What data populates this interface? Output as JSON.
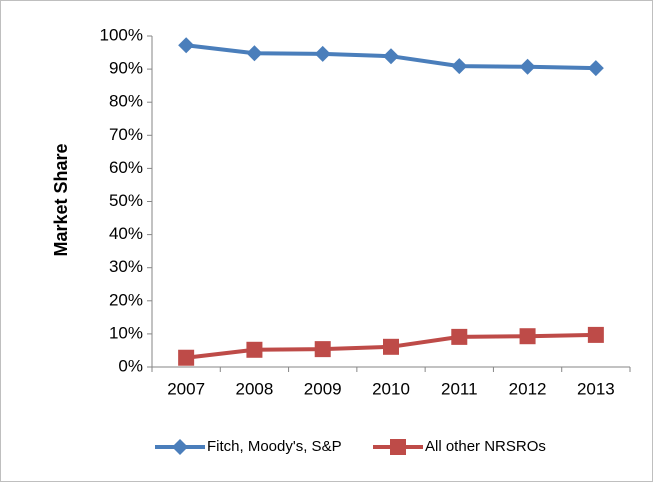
{
  "chart_data": {
    "type": "line",
    "y_axis_label": "Market Share",
    "categories": [
      "2007",
      "2008",
      "2009",
      "2010",
      "2011",
      "2012",
      "2013"
    ],
    "series": [
      {
        "name": "Fitch, Moody's, S&P",
        "color": "#4a7ebb",
        "marker": "diamond",
        "values": [
          97.2,
          94.8,
          94.6,
          93.9,
          90.9,
          90.7,
          90.3
        ]
      },
      {
        "name": "All other NRSROs",
        "color": "#be4b48",
        "marker": "square",
        "values": [
          2.8,
          5.2,
          5.4,
          6.1,
          9.1,
          9.3,
          9.7
        ]
      }
    ],
    "ylim": [
      0,
      100
    ],
    "yticks": [
      {
        "value": 0,
        "label": "0%"
      },
      {
        "value": 10,
        "label": "10%"
      },
      {
        "value": 20,
        "label": "20%"
      },
      {
        "value": 30,
        "label": "30%"
      },
      {
        "value": 40,
        "label": "40%"
      },
      {
        "value": 50,
        "label": "50%"
      },
      {
        "value": 60,
        "label": "60%"
      },
      {
        "value": 70,
        "label": "70%"
      },
      {
        "value": 80,
        "label": "80%"
      },
      {
        "value": 90,
        "label": "90%"
      },
      {
        "value": 100,
        "label": "100%"
      }
    ],
    "grid": false,
    "legend": "bottom"
  }
}
